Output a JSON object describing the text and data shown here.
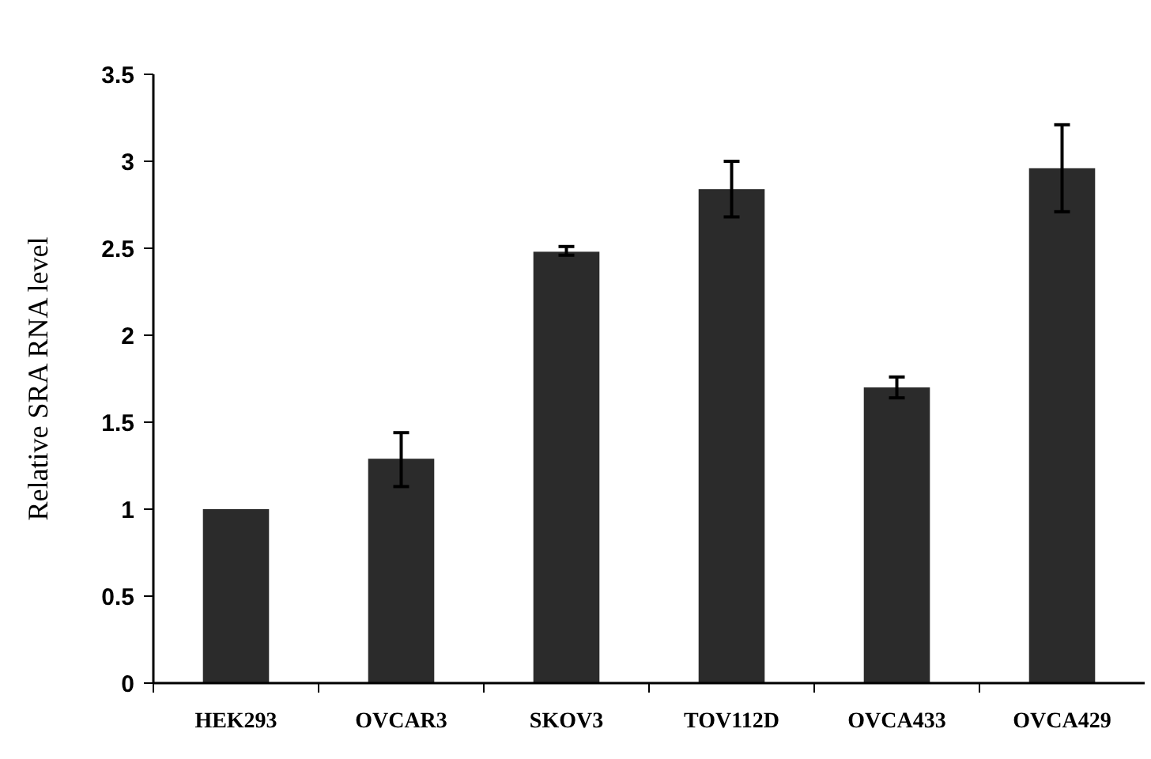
{
  "chart_data": {
    "type": "bar",
    "ylabel": "Relative SRA RNA level",
    "categories": [
      "HEK293",
      "OVCAR3",
      "SKOV3",
      "TOV112D",
      "OVCA433",
      "OVCA429"
    ],
    "values": [
      1.0,
      1.29,
      2.48,
      2.84,
      1.7,
      2.96
    ],
    "errors": [
      null,
      [
        1.13,
        1.44
      ],
      [
        2.46,
        2.51
      ],
      [
        2.68,
        3.0
      ],
      [
        1.64,
        1.76
      ],
      [
        2.71,
        3.21
      ]
    ],
    "color": "#2b2b2b",
    "ylim": [
      0,
      3.5
    ],
    "yticks": [
      0,
      0.5,
      1,
      1.5,
      2,
      2.5,
      3,
      3.5
    ],
    "grid": false
  }
}
